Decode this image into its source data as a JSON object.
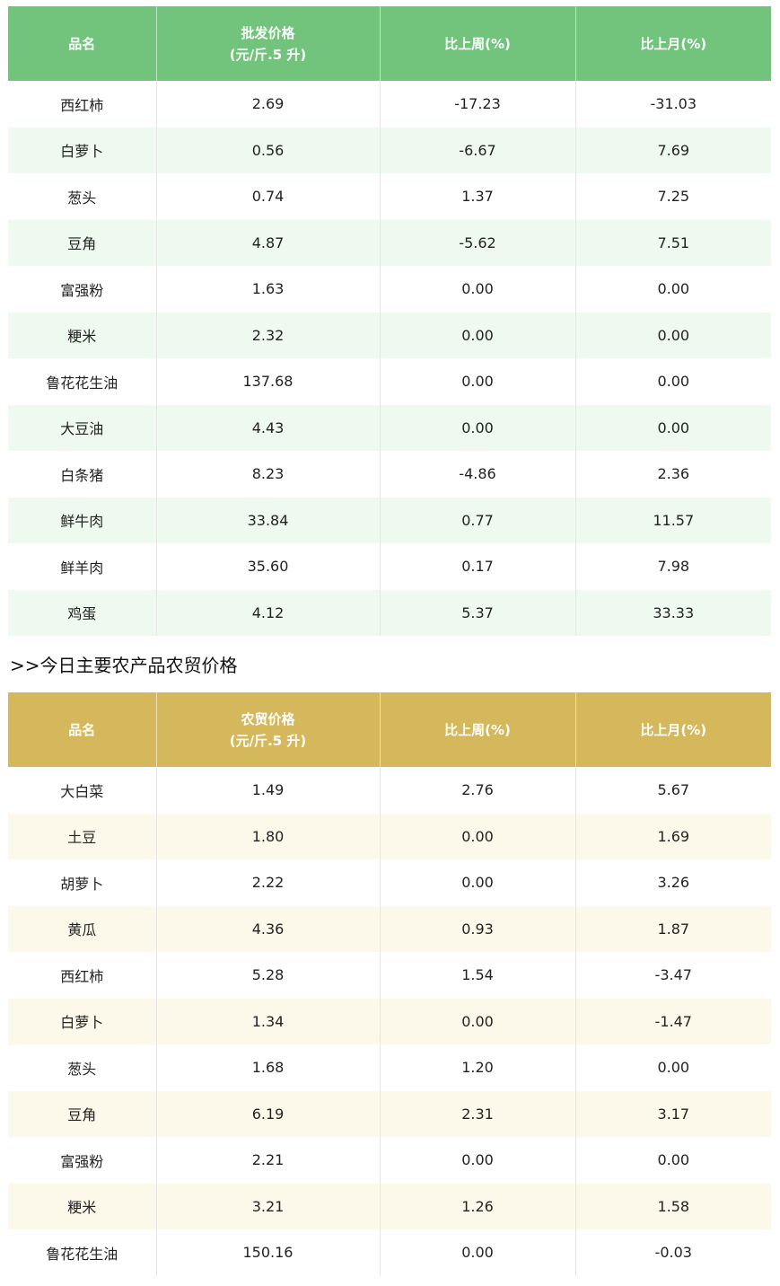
{
  "wholesale_table": {
    "headers": {
      "name": "品名",
      "price_line1": "批发价格",
      "price_line2": "(元/斤.5 升)",
      "week": "比上周(%)",
      "month": "比上月(%)"
    },
    "rows": [
      {
        "name": "西红柿",
        "price": "2.69",
        "week": "-17.23",
        "month": "-31.03"
      },
      {
        "name": "白萝卜",
        "price": "0.56",
        "week": "-6.67",
        "month": "7.69"
      },
      {
        "name": "葱头",
        "price": "0.74",
        "week": "1.37",
        "month": "7.25"
      },
      {
        "name": "豆角",
        "price": "4.87",
        "week": "-5.62",
        "month": "7.51"
      },
      {
        "name": "富强粉",
        "price": "1.63",
        "week": "0.00",
        "month": "0.00"
      },
      {
        "name": "粳米",
        "price": "2.32",
        "week": "0.00",
        "month": "0.00"
      },
      {
        "name": "鲁花花生油",
        "price": "137.68",
        "week": "0.00",
        "month": "0.00"
      },
      {
        "name": "大豆油",
        "price": "4.43",
        "week": "0.00",
        "month": "0.00"
      },
      {
        "name": "白条猪",
        "price": "8.23",
        "week": "-4.86",
        "month": "2.36"
      },
      {
        "name": "鲜牛肉",
        "price": "33.84",
        "week": "0.77",
        "month": "11.57"
      },
      {
        "name": "鲜羊肉",
        "price": "35.60",
        "week": "0.17",
        "month": "7.98"
      },
      {
        "name": "鸡蛋",
        "price": "4.12",
        "week": "5.37",
        "month": "33.33"
      }
    ]
  },
  "section_heading": ">>今日主要农产品农贸价格",
  "market_table": {
    "headers": {
      "name": "品名",
      "price_line1": "农贸价格",
      "price_line2": "(元/斤.5 升)",
      "week": "比上周(%)",
      "month": "比上月(%)"
    },
    "rows": [
      {
        "name": "大白菜",
        "price": "1.49",
        "week": "2.76",
        "month": "5.67"
      },
      {
        "name": "土豆",
        "price": "1.80",
        "week": "0.00",
        "month": "1.69"
      },
      {
        "name": "胡萝卜",
        "price": "2.22",
        "week": "0.00",
        "month": "3.26"
      },
      {
        "name": "黄瓜",
        "price": "4.36",
        "week": "0.93",
        "month": "1.87"
      },
      {
        "name": "西红柿",
        "price": "5.28",
        "week": "1.54",
        "month": "-3.47"
      },
      {
        "name": "白萝卜",
        "price": "1.34",
        "week": "0.00",
        "month": "-1.47"
      },
      {
        "name": "葱头",
        "price": "1.68",
        "week": "1.20",
        "month": "0.00"
      },
      {
        "name": "豆角",
        "price": "6.19",
        "week": "2.31",
        "month": "3.17"
      },
      {
        "name": "富强粉",
        "price": "2.21",
        "week": "0.00",
        "month": "0.00"
      },
      {
        "name": "粳米",
        "price": "3.21",
        "week": "1.26",
        "month": "1.58"
      },
      {
        "name": "鲁花花生油",
        "price": "150.16",
        "week": "0.00",
        "month": "-0.03"
      }
    ]
  },
  "colors": {
    "wholesale_header": "#72c37c",
    "wholesale_stripe": "#eef9f0",
    "market_header": "#d6b85c",
    "market_stripe": "#fdf9ea"
  }
}
